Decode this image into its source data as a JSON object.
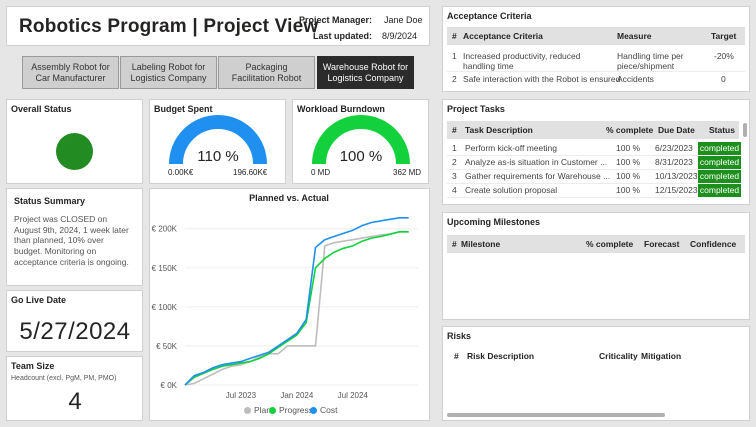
{
  "header": {
    "title": "Robotics Program  |  Project View",
    "pm_label": "Project Manager:",
    "pm_value": "Jane Doe",
    "updated_label": "Last updated:",
    "updated_value": "8/9/2024"
  },
  "tabs": [
    {
      "label": "Assembly Robot for Car Manufacturer",
      "active": false
    },
    {
      "label": "Labeling Robot for Logistics Company",
      "active": false
    },
    {
      "label": "Packaging Facilitation Robot",
      "active": false
    },
    {
      "label": "Warehouse Robot for Logistics Company",
      "active": true
    }
  ],
  "overall_status": {
    "title": "Overall Status",
    "color": "#228b22"
  },
  "budget": {
    "title": "Budget Spent",
    "value": "110 %",
    "min": "0.00K€",
    "max": "196.60K€",
    "fraction": 1.0,
    "color": "#1f8ff0"
  },
  "burndown": {
    "title": "Workload Burndown",
    "value": "100 %",
    "min": "0 MD",
    "max": "362 MD",
    "fraction": 1.0,
    "color": "#13d13d"
  },
  "summary": {
    "title": "Status Summary",
    "text": "Project was CLOSED on August 9th, 2024, 1 week later than planned, 10% over budget. Monitoring on acceptance criteria is ongoing."
  },
  "golive": {
    "title": "Go Live Date",
    "value": "5/27/2024"
  },
  "team": {
    "title": "Team Size",
    "subtitle": "Headcount (excl. PgM, PM, PMO)",
    "value": "4"
  },
  "chart_data": {
    "type": "line",
    "title": "Planned vs. Actual",
    "y_ticks": [
      "€ 0K",
      "€ 50K",
      "€ 100K",
      "€ 150K",
      "€ 200K"
    ],
    "x_ticks": [
      "Jul 2023",
      "Jan 2024",
      "Jul 2024"
    ],
    "x_tick_months": [
      6,
      12,
      18
    ],
    "ylim": [
      0,
      215000
    ],
    "xlim_months": [
      0,
      25
    ],
    "x": [
      0,
      1,
      2,
      3,
      4,
      5,
      6,
      7,
      8,
      9,
      10,
      11,
      12,
      13,
      14,
      15,
      16,
      17,
      18,
      19,
      20,
      21,
      22,
      23,
      24
    ],
    "series": [
      {
        "name": "Plan",
        "color": "#bdbdbd",
        "values": [
          0,
          2000,
          8000,
          14000,
          20000,
          24000,
          26000,
          30000,
          36000,
          40000,
          40000,
          50000,
          50000,
          50000,
          50000,
          178000,
          182000,
          184000,
          186000,
          188000,
          190000,
          192000,
          193000,
          196000,
          196000
        ]
      },
      {
        "name": "Progress",
        "color": "#13d13d",
        "values": [
          0,
          10000,
          15000,
          20000,
          24000,
          26000,
          28000,
          30000,
          34000,
          40000,
          48000,
          56000,
          64000,
          80000,
          150000,
          162000,
          170000,
          175000,
          178000,
          184000,
          188000,
          190000,
          193000,
          196000,
          196000
        ]
      },
      {
        "name": "Cost",
        "color": "#1f8ff0",
        "values": [
          0,
          12000,
          16000,
          22000,
          26000,
          28000,
          30000,
          34000,
          38000,
          42000,
          50000,
          58000,
          66000,
          84000,
          176000,
          186000,
          190000,
          194000,
          198000,
          204000,
          208000,
          210000,
          212000,
          214000,
          214000
        ]
      }
    ],
    "legend": "bottom"
  },
  "acceptance": {
    "title": "Acceptance Criteria",
    "headers": [
      "#",
      "Acceptance Criteria",
      "Measure",
      "Target"
    ],
    "rows": [
      {
        "n": "1",
        "criteria": "Increased productivity, reduced handling time",
        "measure": "Handling time per piece/shipment",
        "target": "-20%"
      },
      {
        "n": "2",
        "criteria": "Safe interaction with the Robot is ensured",
        "measure": "Accidents",
        "target": "0"
      }
    ]
  },
  "tasks": {
    "title": "Project Tasks",
    "headers": [
      "#",
      "Task Description",
      "% complete",
      "Due Date",
      "Status"
    ],
    "rows": [
      {
        "n": "1",
        "desc": "Perform kick-off meeting",
        "pct": "100 %",
        "due": "6/23/2023",
        "status": "completed"
      },
      {
        "n": "2",
        "desc": "Analyze as-is situation in Customer ...",
        "pct": "100 %",
        "due": "8/31/2023",
        "status": "completed"
      },
      {
        "n": "3",
        "desc": "Gather requirements for Warehouse ...",
        "pct": "100 %",
        "due": "10/13/2023",
        "status": "completed"
      },
      {
        "n": "4",
        "desc": "Create solution proposal",
        "pct": "100 %",
        "due": "12/15/2023",
        "status": "completed"
      }
    ]
  },
  "milestones": {
    "title": "Upcoming Milestones",
    "headers": [
      "#",
      "Milestone",
      "% complete",
      "Forecast",
      "Confidence"
    ]
  },
  "risks": {
    "title": "Risks",
    "headers": [
      "#",
      "Risk Description",
      "Criticality",
      "Mitigation"
    ]
  },
  "colors": {
    "accent_blue": "#1f8ff0",
    "accent_green": "#13d13d",
    "status_green": "#1d8f1d"
  }
}
